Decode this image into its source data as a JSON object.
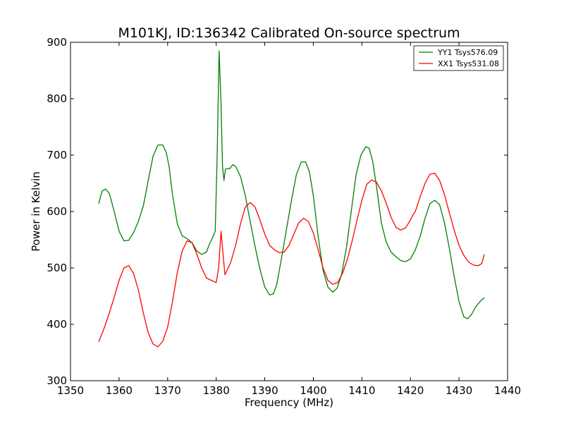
{
  "chart_data": {
    "type": "line",
    "title": "M101KJ, ID:136342 Calibrated On-source spectrum",
    "xlabel": "Frequency (MHz)",
    "ylabel": "Power in Kelvin",
    "xlim": [
      1350,
      1440
    ],
    "ylim": [
      300,
      900
    ],
    "xticks": [
      1350,
      1360,
      1370,
      1380,
      1390,
      1400,
      1410,
      1420,
      1430,
      1440
    ],
    "yticks": [
      300,
      400,
      500,
      600,
      700,
      800,
      900
    ],
    "grid": false,
    "legend_position": "top-right",
    "series": [
      {
        "name": "YY1 Tsys576.09",
        "color": "#008000",
        "x": [
          1355.8,
          1356.5,
          1357.2,
          1358.0,
          1359.0,
          1360.0,
          1361.0,
          1362.0,
          1363.0,
          1364.0,
          1365.0,
          1366.0,
          1367.0,
          1368.0,
          1369.0,
          1369.7,
          1370.3,
          1371.0,
          1372.0,
          1373.0,
          1374.0,
          1375.0,
          1376.0,
          1377.0,
          1378.0,
          1378.5,
          1379.2,
          1379.8,
          1380.2,
          1380.6,
          1381.0,
          1381.3,
          1381.6,
          1381.9,
          1382.3,
          1382.8,
          1383.4,
          1384.0,
          1385.0,
          1386.0,
          1387.0,
          1388.0,
          1389.0,
          1390.0,
          1391.0,
          1391.8,
          1392.5,
          1393.5,
          1394.5,
          1395.5,
          1396.5,
          1397.5,
          1398.4,
          1399.2,
          1400.0,
          1401.0,
          1402.0,
          1403.0,
          1404.0,
          1404.9,
          1405.8,
          1406.8,
          1407.8,
          1408.8,
          1409.8,
          1410.8,
          1411.5,
          1412.2,
          1413.0,
          1414.0,
          1415.0,
          1416.0,
          1417.0,
          1418.0,
          1419.0,
          1420.0,
          1421.0,
          1422.0,
          1423.0,
          1424.0,
          1425.0,
          1426.0,
          1427.0,
          1428.0,
          1429.0,
          1430.0,
          1431.0,
          1431.8,
          1432.6,
          1433.5,
          1434.5,
          1435.2
        ],
        "y": [
          614,
          636,
          640,
          632,
          600,
          565,
          548,
          549,
          563,
          583,
          610,
          655,
          698,
          718,
          718,
          705,
          680,
          630,
          578,
          557,
          552,
          545,
          530,
          524,
          528,
          540,
          553,
          565,
          700,
          885,
          790,
          680,
          655,
          675,
          676,
          676,
          683,
          680,
          662,
          628,
          582,
          538,
          498,
          466,
          452,
          454,
          472,
          520,
          570,
          620,
          665,
          688,
          688,
          670,
          628,
          555,
          496,
          466,
          457,
          464,
          488,
          535,
          600,
          665,
          700,
          715,
          712,
          690,
          645,
          580,
          546,
          528,
          520,
          513,
          511,
          516,
          532,
          556,
          588,
          614,
          620,
          612,
          580,
          535,
          485,
          440,
          413,
          410,
          418,
          432,
          442,
          447
        ]
      },
      {
        "name": "XX1 Tsys531.08",
        "color": "#ff0000",
        "x": [
          1355.8,
          1356.8,
          1358.0,
          1359.0,
          1360.0,
          1361.0,
          1362.0,
          1363.0,
          1364.0,
          1365.0,
          1366.0,
          1367.0,
          1368.0,
          1369.0,
          1370.0,
          1371.0,
          1372.0,
          1373.0,
          1374.0,
          1375.0,
          1376.0,
          1377.0,
          1378.0,
          1379.0,
          1380.0,
          1380.5,
          1381.0,
          1381.4,
          1381.8,
          1382.2,
          1383.0,
          1384.0,
          1385.0,
          1386.0,
          1387.0,
          1388.0,
          1389.0,
          1390.0,
          1391.0,
          1392.0,
          1393.0,
          1394.0,
          1395.0,
          1396.0,
          1397.0,
          1398.0,
          1399.0,
          1400.0,
          1401.0,
          1402.0,
          1403.0,
          1404.0,
          1405.0,
          1406.0,
          1407.0,
          1408.0,
          1409.0,
          1410.0,
          1411.0,
          1412.0,
          1413.0,
          1414.0,
          1415.0,
          1416.0,
          1417.0,
          1418.0,
          1419.0,
          1420.0,
          1420.5,
          1421.0,
          1422.0,
          1423.0,
          1424.0,
          1425.0,
          1426.0,
          1427.0,
          1428.0,
          1429.0,
          1430.0,
          1431.0,
          1432.0,
          1433.0,
          1434.0,
          1434.7,
          1435.2
        ],
        "y": [
          369,
          390,
          420,
          448,
          478,
          500,
          504,
          490,
          460,
          420,
          385,
          365,
          360,
          370,
          395,
          440,
          492,
          530,
          548,
          545,
          525,
          500,
          482,
          478,
          474,
          500,
          565,
          525,
          488,
          495,
          510,
          540,
          578,
          608,
          616,
          608,
          585,
          560,
          540,
          532,
          527,
          528,
          540,
          560,
          580,
          588,
          582,
          562,
          532,
          500,
          478,
          471,
          474,
          490,
          515,
          548,
          585,
          620,
          648,
          656,
          652,
          637,
          615,
          590,
          572,
          567,
          571,
          585,
          594,
          600,
          626,
          650,
          666,
          668,
          655,
          630,
          598,
          567,
          540,
          522,
          510,
          505,
          504,
          508,
          524
        ]
      }
    ]
  }
}
